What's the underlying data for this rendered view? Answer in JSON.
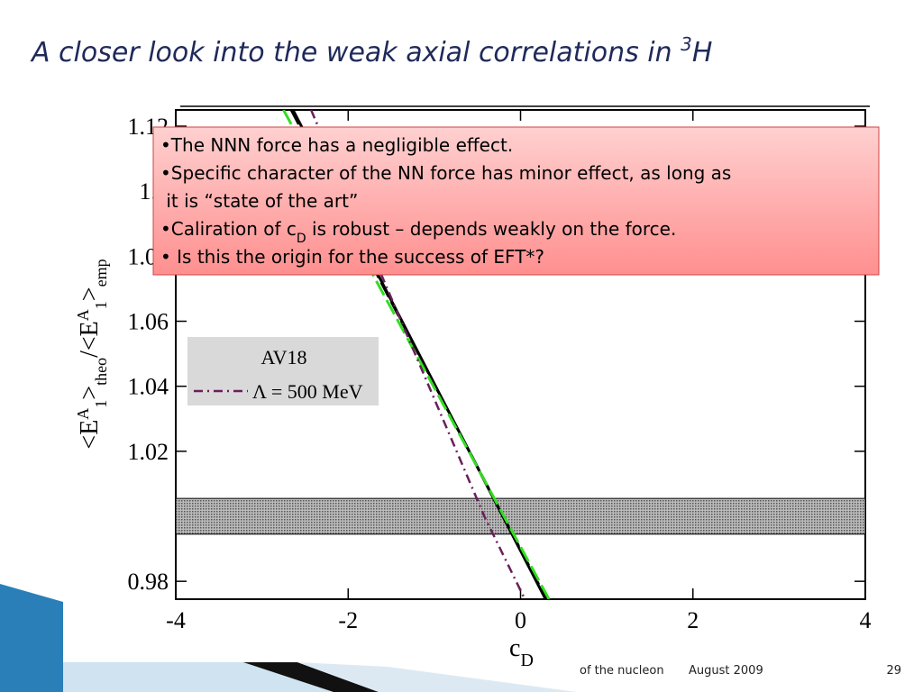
{
  "slide": {
    "title": [
      "A closer look into the weak axial correlations in ",
      "3",
      "H"
    ],
    "box_lines": [
      [
        "•The NNN force has a negligible effect."
      ],
      [
        "•Specific character of the NN force has minor effect, as long as"
      ],
      [
        " it is “state of the art”"
      ],
      [
        "•Caliration of c",
        "D",
        " is robust – depends weakly on the force."
      ],
      [
        "• Is this the origin for the success of EFT*?"
      ]
    ],
    "footer": [
      "of the nucleon",
      "August 2009",
      "29"
    ]
  },
  "chart_data": {
    "type": "line",
    "xlabel": [
      "c",
      "D"
    ],
    "ylabel": [
      "<E",
      "A",
      "1",
      ">",
      "theo",
      "/<E",
      "A",
      "1",
      ">",
      "emp"
    ],
    "xlim": [
      -4,
      4
    ],
    "xticks": [
      -4,
      -2,
      0,
      2,
      4
    ],
    "ylim": [
      0.9745,
      1.125
    ],
    "yticks": [
      0.98,
      1.02,
      1.04,
      1.06,
      1.08,
      1.1,
      1.12
    ],
    "band": [
      0.9945,
      1.0055
    ],
    "series": [
      {
        "name": "AV18",
        "color": "#000000",
        "dash": "solid",
        "legend_sample": false,
        "x": [
          -2.64,
          0.29
        ],
        "values": [
          1.125,
          0.9745
        ]
      },
      {
        "color": "#000000",
        "dash": "dashed",
        "x": [
          -2.66,
          0.3
        ],
        "values": [
          1.125,
          0.9745
        ]
      },
      {
        "color": "#33dd22",
        "dash": "dashed",
        "x": [
          -2.75,
          0.33
        ],
        "values": [
          1.125,
          0.9745
        ]
      },
      {
        "name": "Λ = 500 MeV",
        "color": "#6b1f5a",
        "dash": "dashdot",
        "legend_sample": true,
        "x": [
          -2.43,
          -0.42,
          0.05
        ],
        "values": [
          1.125,
          1.0,
          0.9745
        ]
      }
    ]
  }
}
